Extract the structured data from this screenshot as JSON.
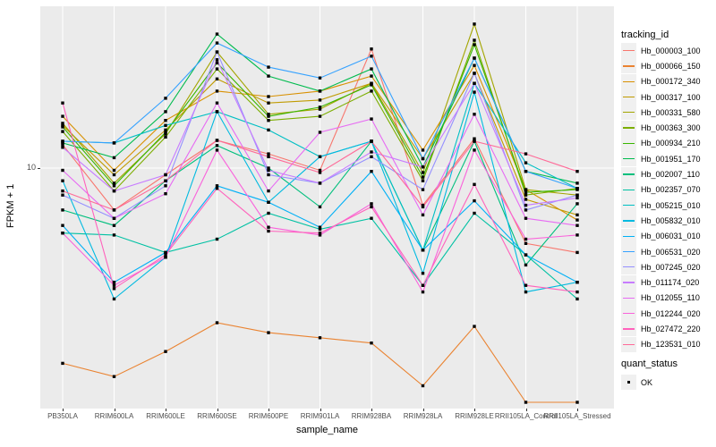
{
  "figure": {
    "y_axis_title": "FPKM + 1",
    "x_axis_title": "sample_name",
    "y_tick_label": "10",
    "panel_bg": "#EBEBEB",
    "grid_color": "#FFFFFF",
    "marker_color": "#000000"
  },
  "legend": {
    "tracking_title": "tracking_id",
    "quant_title": "quant_status",
    "quant_ok_label": "OK"
  },
  "chart_data": {
    "type": "line",
    "title": "",
    "xlabel": "sample_name",
    "ylabel": "FPKM + 1",
    "y_scale": "log10",
    "y_ticks": [
      10
    ],
    "ylim": [
      1.05,
      45
    ],
    "grid": "major",
    "legend_position": "right",
    "marker": "filled-square",
    "categories": [
      "PB350LA",
      "RRIM600LA",
      "RRIM600LE",
      "RRIM600SE",
      "RRIM600PE",
      "RRIM901LA",
      "RRIM928BA",
      "RRIM928LA",
      "RRIM928LE",
      "RRII105LA_Control",
      "RRII105LA_Stressed"
    ],
    "series": [
      {
        "name": "Hb_000003_100",
        "color": "#F8766D",
        "values": [
          12.4,
          6.8,
          9.4,
          12.9,
          11.4,
          9.8,
          29.9,
          7.1,
          13.1,
          5.0,
          4.6
        ]
      },
      {
        "name": "Hb_000066_150",
        "color": "#EA8331",
        "values": [
          1.66,
          1.47,
          1.85,
          2.41,
          2.2,
          2.1,
          2.0,
          1.35,
          2.33,
          1.16,
          1.16
        ]
      },
      {
        "name": "Hb_000172_340",
        "color": "#D89000",
        "values": [
          16.1,
          9.8,
          15.5,
          20.3,
          19.3,
          20.3,
          23.3,
          11.8,
          25.7,
          8.2,
          6.2
        ]
      },
      {
        "name": "Hb_000317_100",
        "color": "#C09B00",
        "values": [
          14.8,
          9.4,
          14.2,
          22.7,
          18.2,
          18.7,
          21.8,
          10.9,
          23.9,
          7.5,
          6.5
        ]
      },
      {
        "name": "Hb_000331_580",
        "color": "#A3A500",
        "values": [
          15.1,
          8.7,
          13.7,
          29.1,
          16.4,
          17.2,
          21.8,
          9.6,
          37.6,
          8.2,
          7.8
        ]
      },
      {
        "name": "Hb_000363_300",
        "color": "#7CAE00",
        "values": [
          14.0,
          8.1,
          13.3,
          24.9,
          15.5,
          16.1,
          20.3,
          8.9,
          32.4,
          7.8,
          8.3
        ]
      },
      {
        "name": "Hb_000934_210",
        "color": "#39B600",
        "values": [
          14.6,
          8.5,
          13.9,
          26.3,
          16.1,
          17.5,
          21.5,
          9.2,
          31.1,
          8.0,
          8.2
        ]
      },
      {
        "name": "Hb_001951_170",
        "color": "#00BB4E",
        "values": [
          12.6,
          11.0,
          16.8,
          34.3,
          23.3,
          20.3,
          24.9,
          10.1,
          27.5,
          9.7,
          8.7
        ]
      },
      {
        "name": "Hb_002007_110",
        "color": "#00BF7D",
        "values": [
          6.8,
          5.9,
          8.9,
          12.3,
          10.0,
          7.0,
          12.8,
          4.7,
          12.8,
          4.1,
          7.2
        ]
      },
      {
        "name": "Hb_002357_070",
        "color": "#00C1A3",
        "values": [
          5.5,
          5.4,
          4.6,
          5.2,
          6.6,
          5.7,
          6.3,
          3.4,
          6.6,
          4.5,
          3.0
        ]
      },
      {
        "name": "Hb_005215_010",
        "color": "#00BFC4",
        "values": [
          12.8,
          12.6,
          14.8,
          16.8,
          14.2,
          11.1,
          12.8,
          4.7,
          21.8,
          10.5,
          8.3
        ]
      },
      {
        "name": "Hb_005832_010",
        "color": "#00BAE0",
        "values": [
          8.9,
          3.0,
          4.4,
          16.8,
          7.3,
          11.1,
          12.8,
          3.8,
          20.1,
          3.2,
          3.5
        ]
      },
      {
        "name": "Hb_006031_010",
        "color": "#00B0F6",
        "values": [
          5.9,
          3.5,
          4.6,
          8.5,
          7.3,
          5.8,
          9.7,
          4.7,
          7.4,
          4.5,
          3.5
        ]
      },
      {
        "name": "Hb_006531_020",
        "color": "#35A2FF",
        "values": [
          12.8,
          12.6,
          19.0,
          31.6,
          25.3,
          22.9,
          28.0,
          10.9,
          27.5,
          9.7,
          8.3
        ]
      },
      {
        "name": "Hb_007245_020",
        "color": "#9590FF",
        "values": [
          7.8,
          6.3,
          8.5,
          29.1,
          9.4,
          8.7,
          11.1,
          8.2,
          23.9,
          6.8,
          7.8
        ]
      },
      {
        "name": "Hb_011174_020",
        "color": "#C77CFF",
        "values": [
          12.1,
          8.1,
          9.4,
          27.1,
          9.8,
          8.7,
          11.6,
          10.1,
          21.8,
          7.1,
          7.6
        ]
      },
      {
        "name": "Hb_012055_110",
        "color": "#E76BF3",
        "values": [
          9.8,
          6.3,
          7.9,
          18.2,
          8.1,
          13.9,
          15.7,
          6.5,
          16.4,
          6.3,
          5.9
        ]
      },
      {
        "name": "Hb_012244_020",
        "color": "#FA62DB",
        "values": [
          5.5,
          3.4,
          4.4,
          11.8,
          5.8,
          5.4,
          7.2,
          3.2,
          11.8,
          5.2,
          5.4
        ]
      },
      {
        "name": "Hb_027472_220",
        "color": "#FF62BC",
        "values": [
          18.2,
          3.3,
          4.5,
          8.3,
          5.6,
          5.5,
          7.0,
          3.4,
          8.6,
          3.4,
          3.2
        ]
      },
      {
        "name": "Hb_123531_010",
        "color": "#FF6A98",
        "values": [
          8.1,
          6.8,
          8.9,
          12.9,
          11.1,
          9.6,
          12.8,
          7.0,
          12.8,
          11.4,
          9.7
        ]
      }
    ],
    "quant_status_legend": {
      "title": "quant_status",
      "items": [
        {
          "label": "OK",
          "shape": "filled-square",
          "color": "#000000"
        }
      ]
    }
  }
}
